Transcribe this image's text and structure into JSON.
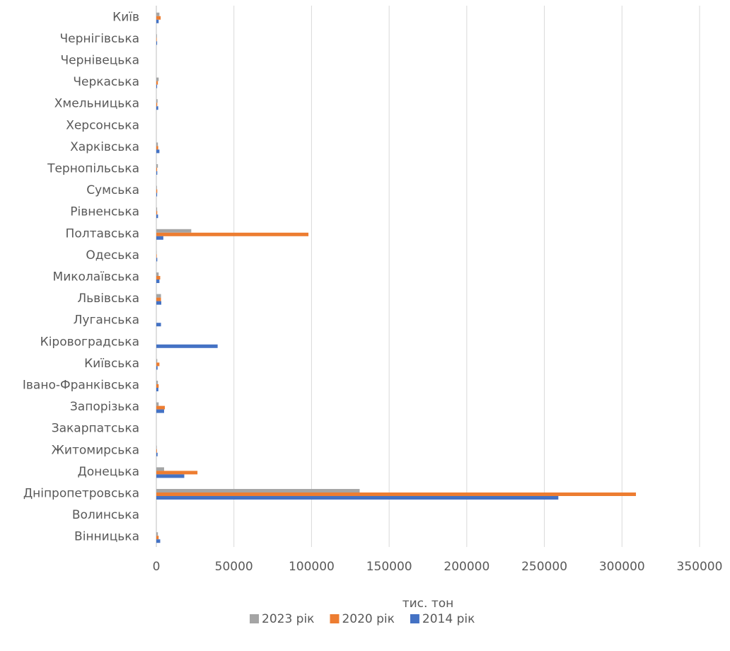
{
  "chart_data": {
    "type": "bar",
    "orientation": "horizontal",
    "title": "",
    "xlabel": "тис. тон",
    "ylabel": "",
    "xlim": [
      0,
      350000
    ],
    "xticks": [
      0,
      50000,
      100000,
      150000,
      200000,
      250000,
      300000,
      350000
    ],
    "tick_labels": [
      "0",
      "50000",
      "100000",
      "150000",
      "200000",
      "250000",
      "300000",
      "350000"
    ],
    "grid": "vertical",
    "legend": "bottom",
    "categories": [
      "Вінницька",
      "Волинська",
      "Дніпропетровська",
      "Донецька",
      "Житомирська",
      "Закарпатська",
      "Запорізька",
      "Івано-Франківська",
      "Київська",
      "Кіровоградська",
      "Луганська",
      "Львівська",
      "Миколаївська",
      "Одеська",
      "Полтавська",
      "Рівненська",
      "Сумська",
      "Тернопільська",
      "Харківська",
      "Херсонська",
      "Хмельницька",
      "Черкаська",
      "Чернівецька",
      "Чернігівська",
      "Київ"
    ],
    "series": [
      {
        "name": "2014 рік",
        "color": "#4472C4",
        "values": [
          2500,
          0,
          259000,
          18000,
          800,
          0,
          5000,
          1300,
          800,
          39500,
          3000,
          3200,
          2000,
          600,
          4500,
          1100,
          500,
          600,
          2000,
          0,
          1200,
          500,
          0,
          500,
          1500
        ]
      },
      {
        "name": "2020 рік",
        "color": "#ED7D31",
        "values": [
          1500,
          0,
          309000,
          26500,
          400,
          0,
          5500,
          1500,
          2000,
          0,
          0,
          3000,
          2500,
          300,
          98000,
          600,
          600,
          500,
          1200,
          0,
          600,
          1000,
          0,
          300,
          2800
        ]
      },
      {
        "name": "2023 рік",
        "color": "#A5A5A5",
        "values": [
          1000,
          0,
          131000,
          5000,
          300,
          0,
          1500,
          1000,
          600,
          0,
          0,
          3000,
          1500,
          200,
          22500,
          500,
          400,
          1000,
          1000,
          0,
          800,
          1500,
          0,
          400,
          2000
        ]
      }
    ],
    "legend_order": [
      "2023 рік",
      "2020 рік",
      "2014 рік"
    ]
  }
}
